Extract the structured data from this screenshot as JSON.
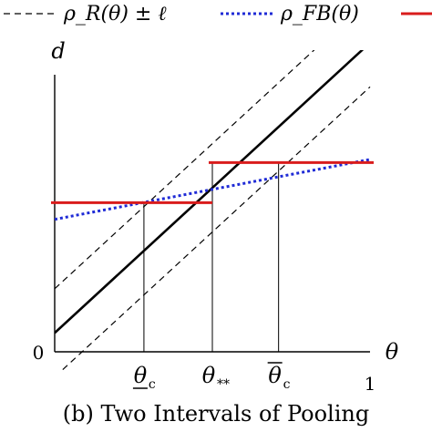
{
  "chart_data": {
    "type": "line",
    "xlabel": "θ",
    "ylabel": "d",
    "xlim": [
      0,
      1
    ],
    "ylim": [
      0,
      1
    ],
    "x_tick_labels": [
      {
        "x": 0.0,
        "label": "0"
      },
      {
        "x": 0.283,
        "label": "θ_c",
        "accent": "underline",
        "sub": "c"
      },
      {
        "x": 0.5,
        "label": "θ_**",
        "sub": "**"
      },
      {
        "x": 0.71,
        "label": "θ_c",
        "accent": "overline",
        "sub": "c"
      },
      {
        "x": 1.0,
        "label": "1"
      }
    ],
    "legend": {
      "placement": "top",
      "entries": [
        {
          "label": "ρ_R(θ) ± ℓ",
          "style": "dashed",
          "color": "#000000"
        },
        {
          "label": "ρ_FB(θ)",
          "style": "dotted",
          "color": "#1f2bd6"
        },
        {
          "label": "",
          "style": "solid",
          "color": "#d91c1c"
        }
      ]
    },
    "series": [
      {
        "name": "ρ_R(θ)",
        "style": "solid",
        "color": "#000000",
        "x": [
          0.0,
          1.0
        ],
        "y": [
          0.06,
          0.98
        ]
      },
      {
        "name": "ρ_R(θ) + ℓ",
        "style": "dashed",
        "color": "#000000",
        "x": [
          0.0,
          1.0
        ],
        "y": [
          0.2,
          1.12
        ]
      },
      {
        "name": "ρ_R(θ) − ℓ",
        "style": "dashed",
        "color": "#000000",
        "x": [
          0.0,
          1.0
        ],
        "y": [
          -0.08,
          0.84
        ]
      },
      {
        "name": "ρ_FB(θ)",
        "style": "dotted",
        "color": "#1f2bd6",
        "x": [
          0.0,
          1.0
        ],
        "y": [
          0.42,
          0.61
        ]
      },
      {
        "name": "pooling-1",
        "style": "solid",
        "color": "#d91c1c",
        "x": [
          0.0,
          0.5
        ],
        "y": [
          0.473,
          0.473
        ]
      },
      {
        "name": "pooling-2",
        "style": "solid",
        "color": "#d91c1c",
        "x": [
          0.5,
          1.0
        ],
        "y": [
          0.6,
          0.6
        ]
      }
    ],
    "verticals": [
      {
        "x": 0.283,
        "y_top": 0.473
      },
      {
        "x": 0.5,
        "y_top": 0.6
      },
      {
        "x": 0.71,
        "y_top": 0.6
      }
    ]
  },
  "caption": "(b) Two Intervals of Pooling"
}
